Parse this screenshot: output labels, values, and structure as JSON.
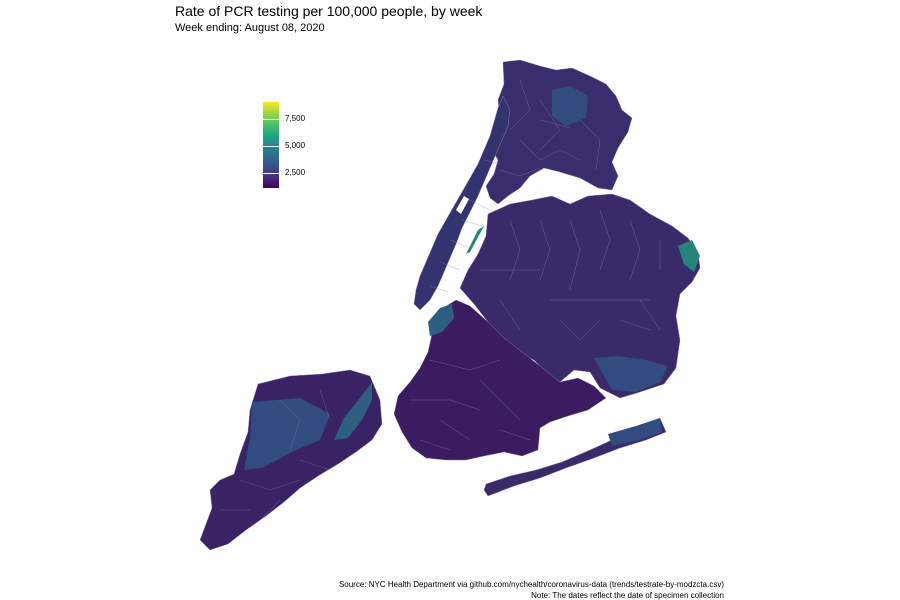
{
  "title": "Rate of PCR testing per 100,000 people, by week",
  "subtitle": "Week ending: August 08, 2020",
  "legend": {
    "scale_min": 1000,
    "scale_max": 9300,
    "ticks": [
      {
        "value": 2500,
        "label": "2,500"
      },
      {
        "value": 5000,
        "label": "5,000"
      },
      {
        "value": 7500,
        "label": "7,500"
      }
    ],
    "colors": [
      "#440154",
      "#46327e",
      "#365c8d",
      "#277f8e",
      "#1fa187",
      "#4ac16d",
      "#a0da39",
      "#fde725"
    ]
  },
  "map": {
    "region_colors": {
      "bronx": "#3a2d6d",
      "manhattan": "#33336f",
      "queens": "#3b2a6a",
      "brooklyn": "#3c1c60",
      "staten_island": "#3a2365",
      "highlight_high": "#25857d",
      "highlight_mid": "#2f5f80",
      "highlight_midlow": "#324b80"
    }
  },
  "captions": {
    "source": "Source: NYC Health Department via github.com/nychealth/coronavirus-data (trends/testrate-by-modzcta.csv)",
    "note": "Note: The dates reflect the date of specimen collection"
  }
}
